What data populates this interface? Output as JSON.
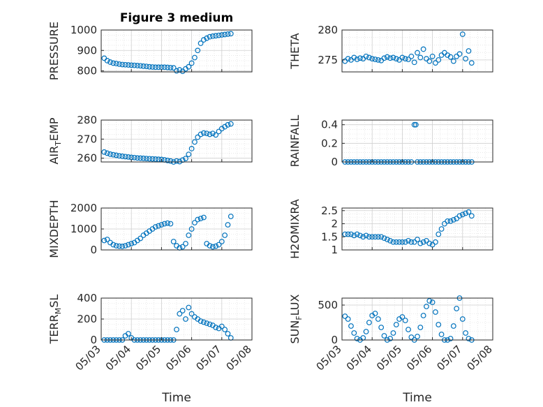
{
  "figure": {
    "title": "Figure 3 medium",
    "xlabel": "Time",
    "marker_color": "#0072BD",
    "x_ticks": [
      "05/03",
      "05/04",
      "05/05",
      "05/06",
      "05/07",
      "05/08"
    ]
  },
  "chart_data": [
    {
      "type": "scatter",
      "ylabel": "PRESSURE",
      "ylim": [
        795,
        1000
      ],
      "yticks": [
        800,
        900,
        1000
      ],
      "xlim": [
        0,
        5
      ],
      "grid": true,
      "minor_grid": true,
      "x": [
        0.1,
        0.2,
        0.3,
        0.4,
        0.5,
        0.6,
        0.7,
        0.8,
        0.9,
        1.0,
        1.1,
        1.2,
        1.3,
        1.4,
        1.5,
        1.6,
        1.7,
        1.8,
        1.9,
        2.0,
        2.1,
        2.2,
        2.3,
        2.4,
        2.5,
        2.6,
        2.7,
        2.8,
        2.9,
        3.0,
        3.1,
        3.2,
        3.3,
        3.4,
        3.5,
        3.6,
        3.7,
        3.8,
        3.9,
        4.0,
        4.1,
        4.2,
        4.3
      ],
      "y": [
        862,
        850,
        843,
        838,
        836,
        833,
        831,
        830,
        829,
        828,
        827,
        826,
        825,
        823,
        822,
        820,
        819,
        818,
        818,
        818,
        818,
        817,
        816,
        815,
        800,
        805,
        798,
        810,
        820,
        838,
        865,
        900,
        935,
        952,
        960,
        967,
        970,
        972,
        974,
        976,
        978,
        980,
        982
      ]
    },
    {
      "type": "scatter",
      "ylabel": "THETA",
      "ylim": [
        273,
        280
      ],
      "yticks": [
        275,
        280
      ],
      "xlim": [
        0,
        5
      ],
      "grid": true,
      "minor_grid": true,
      "x": [
        0.1,
        0.2,
        0.3,
        0.4,
        0.5,
        0.6,
        0.7,
        0.8,
        0.9,
        1.0,
        1.1,
        1.2,
        1.3,
        1.4,
        1.5,
        1.6,
        1.7,
        1.8,
        1.9,
        2.0,
        2.1,
        2.2,
        2.3,
        2.4,
        2.5,
        2.6,
        2.7,
        2.8,
        2.9,
        3.0,
        3.1,
        3.2,
        3.3,
        3.4,
        3.5,
        3.6,
        3.7,
        3.8,
        3.9,
        4.0,
        4.1,
        4.2,
        4.3
      ],
      "y": [
        274.8,
        275.2,
        275.0,
        275.4,
        275.1,
        275.3,
        275.2,
        275.6,
        275.4,
        275.2,
        275.1,
        275.0,
        274.9,
        275.3,
        275.5,
        275.3,
        275.4,
        275.2,
        275.0,
        275.4,
        275.2,
        275.1,
        275.6,
        274.6,
        276.2,
        275.4,
        276.8,
        275.2,
        274.8,
        275.6,
        274.5,
        275.0,
        275.8,
        276.2,
        275.8,
        275.5,
        274.8,
        275.6,
        276.0,
        279.3,
        275.2,
        276.5,
        274.5
      ]
    },
    {
      "type": "scatter",
      "ylabel": "AIR_TEMP",
      "ylim": [
        258,
        280
      ],
      "yticks": [
        260,
        270,
        280
      ],
      "xlim": [
        0,
        5
      ],
      "grid": true,
      "minor_grid": true,
      "x": [
        0.1,
        0.2,
        0.3,
        0.4,
        0.5,
        0.6,
        0.7,
        0.8,
        0.9,
        1.0,
        1.1,
        1.2,
        1.3,
        1.4,
        1.5,
        1.6,
        1.7,
        1.8,
        1.9,
        2.0,
        2.1,
        2.2,
        2.3,
        2.4,
        2.5,
        2.6,
        2.7,
        2.8,
        2.9,
        3.0,
        3.1,
        3.2,
        3.3,
        3.4,
        3.5,
        3.6,
        3.7,
        3.8,
        3.9,
        4.0,
        4.1,
        4.2,
        4.3
      ],
      "y": [
        263.2,
        262.6,
        262.1,
        261.8,
        261.5,
        261.2,
        261.0,
        260.8,
        260.6,
        260.4,
        260.3,
        260.1,
        260.0,
        259.9,
        259.8,
        259.7,
        259.6,
        259.5,
        259.4,
        259.3,
        259.1,
        258.8,
        258.5,
        258.0,
        258.5,
        258.2,
        259.0,
        259.8,
        262.0,
        265.0,
        268.5,
        271.0,
        272.5,
        273.2,
        273.0,
        272.5,
        273.0,
        272.2,
        274.0,
        275.5,
        276.5,
        277.5,
        278.0
      ]
    },
    {
      "type": "scatter",
      "ylabel": "RAINFALL",
      "ylim": [
        0,
        0.45
      ],
      "yticks": [
        0,
        0.2,
        0.4
      ],
      "xlim": [
        0,
        5
      ],
      "grid": true,
      "minor_grid": true,
      "x": [
        0.1,
        0.2,
        0.3,
        0.4,
        0.5,
        0.6,
        0.7,
        0.8,
        0.9,
        1.0,
        1.1,
        1.2,
        1.3,
        1.4,
        1.5,
        1.6,
        1.7,
        1.8,
        1.9,
        2.0,
        2.1,
        2.2,
        2.3,
        2.4,
        2.45,
        2.5,
        2.6,
        2.7,
        2.8,
        2.9,
        3.0,
        3.1,
        3.2,
        3.3,
        3.4,
        3.5,
        3.6,
        3.7,
        3.8,
        3.9,
        4.0,
        4.1,
        4.2,
        4.3
      ],
      "y": [
        0,
        0,
        0,
        0,
        0,
        0,
        0,
        0,
        0,
        0,
        0,
        0,
        0,
        0,
        0,
        0,
        0,
        0,
        0,
        0,
        0,
        0,
        0,
        0.4,
        0.4,
        0,
        0,
        0,
        0,
        0,
        0,
        0,
        0,
        0,
        0,
        0,
        0,
        0,
        0,
        0,
        0,
        0,
        0,
        0
      ]
    },
    {
      "type": "scatter",
      "ylabel": "MIXDEPTH",
      "ylim": [
        0,
        2000
      ],
      "yticks": [
        0,
        1000,
        2000
      ],
      "xlim": [
        0,
        5
      ],
      "grid": true,
      "minor_grid": true,
      "x": [
        0.1,
        0.2,
        0.3,
        0.4,
        0.5,
        0.6,
        0.7,
        0.8,
        0.9,
        1.0,
        1.1,
        1.2,
        1.3,
        1.4,
        1.5,
        1.6,
        1.7,
        1.8,
        1.9,
        2.0,
        2.1,
        2.2,
        2.3,
        2.4,
        2.5,
        2.6,
        2.7,
        2.8,
        2.9,
        3.0,
        3.1,
        3.2,
        3.3,
        3.4,
        3.5,
        3.6,
        3.7,
        3.8,
        3.9,
        4.0,
        4.1,
        4.2,
        4.3
      ],
      "y": [
        450,
        500,
        350,
        250,
        200,
        180,
        170,
        200,
        250,
        300,
        350,
        450,
        550,
        700,
        800,
        900,
        1000,
        1100,
        1150,
        1200,
        1250,
        1280,
        1250,
        400,
        200,
        100,
        150,
        300,
        700,
        1000,
        1300,
        1450,
        1500,
        1550,
        300,
        200,
        150,
        180,
        250,
        400,
        700,
        1200,
        1600
      ]
    },
    {
      "type": "scatter",
      "ylabel": "H2OMIXRA",
      "ylim": [
        1,
        2.6
      ],
      "yticks": [
        1,
        1.5,
        2,
        2.5
      ],
      "xlim": [
        0,
        5
      ],
      "grid": true,
      "minor_grid": true,
      "x": [
        0.1,
        0.2,
        0.3,
        0.4,
        0.5,
        0.6,
        0.7,
        0.8,
        0.9,
        1.0,
        1.1,
        1.2,
        1.3,
        1.4,
        1.5,
        1.6,
        1.7,
        1.8,
        1.9,
        2.0,
        2.1,
        2.2,
        2.3,
        2.4,
        2.5,
        2.6,
        2.7,
        2.8,
        2.9,
        3.0,
        3.1,
        3.2,
        3.3,
        3.4,
        3.5,
        3.6,
        3.7,
        3.8,
        3.9,
        4.0,
        4.1,
        4.2,
        4.3
      ],
      "y": [
        1.6,
        1.6,
        1.6,
        1.55,
        1.6,
        1.55,
        1.5,
        1.55,
        1.5,
        1.5,
        1.5,
        1.5,
        1.5,
        1.45,
        1.4,
        1.35,
        1.3,
        1.3,
        1.3,
        1.3,
        1.3,
        1.35,
        1.3,
        1.3,
        1.4,
        1.25,
        1.3,
        1.35,
        1.25,
        1.2,
        1.3,
        1.6,
        1.8,
        2.0,
        2.1,
        2.1,
        2.15,
        2.2,
        2.3,
        2.35,
        2.4,
        2.45,
        2.3
      ]
    },
    {
      "type": "scatter",
      "ylabel": "TERR_MSL",
      "ylim": [
        0,
        400
      ],
      "yticks": [
        0,
        200,
        400
      ],
      "xlim": [
        0,
        5
      ],
      "grid": true,
      "minor_grid": true,
      "x": [
        0.1,
        0.2,
        0.3,
        0.4,
        0.5,
        0.6,
        0.7,
        0.8,
        0.9,
        1.0,
        1.1,
        1.2,
        1.3,
        1.4,
        1.5,
        1.6,
        1.7,
        1.8,
        1.9,
        2.0,
        2.1,
        2.2,
        2.3,
        2.4,
        2.5,
        2.6,
        2.7,
        2.8,
        2.9,
        3.0,
        3.1,
        3.2,
        3.3,
        3.4,
        3.5,
        3.6,
        3.7,
        3.8,
        3.9,
        4.0,
        4.1,
        4.2,
        4.3
      ],
      "y": [
        0,
        0,
        0,
        0,
        0,
        0,
        0,
        40,
        60,
        20,
        0,
        0,
        0,
        0,
        0,
        0,
        0,
        0,
        0,
        0,
        0,
        0,
        0,
        0,
        100,
        250,
        280,
        200,
        310,
        250,
        220,
        200,
        180,
        170,
        160,
        150,
        140,
        120,
        110,
        130,
        100,
        60,
        20
      ]
    },
    {
      "type": "scatter",
      "ylabel": "SUN_FLUX",
      "ylim": [
        0,
        600
      ],
      "yticks": [
        0,
        500
      ],
      "xlim": [
        0,
        5
      ],
      "grid": true,
      "minor_grid": true,
      "x": [
        0.1,
        0.2,
        0.3,
        0.4,
        0.5,
        0.6,
        0.7,
        0.8,
        0.9,
        1.0,
        1.1,
        1.2,
        1.3,
        1.4,
        1.5,
        1.6,
        1.7,
        1.8,
        1.9,
        2.0,
        2.1,
        2.2,
        2.3,
        2.4,
        2.5,
        2.6,
        2.7,
        2.8,
        2.9,
        3.0,
        3.1,
        3.2,
        3.3,
        3.4,
        3.5,
        3.6,
        3.7,
        3.8,
        3.9,
        4.0,
        4.1,
        4.2,
        4.3
      ],
      "y": [
        340,
        300,
        200,
        100,
        20,
        0,
        30,
        120,
        250,
        350,
        380,
        300,
        180,
        60,
        0,
        20,
        100,
        220,
        300,
        330,
        280,
        150,
        40,
        0,
        50,
        180,
        350,
        480,
        560,
        540,
        400,
        220,
        80,
        0,
        0,
        20,
        200,
        450,
        600,
        300,
        100,
        20,
        0
      ]
    }
  ]
}
